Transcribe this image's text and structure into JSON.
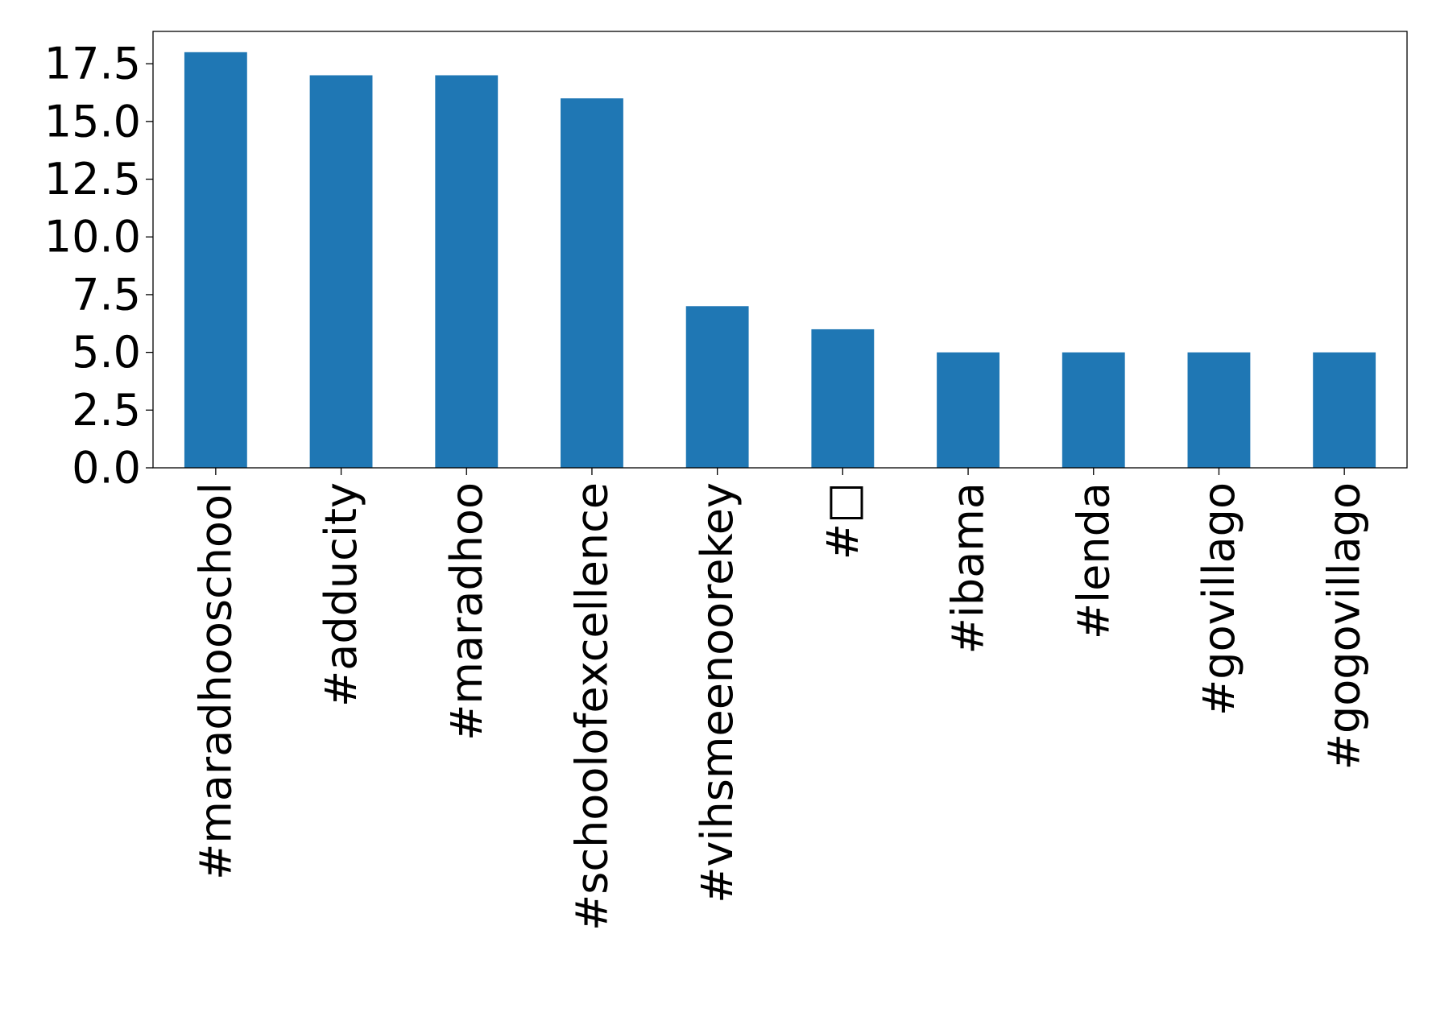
{
  "chart_data": {
    "type": "bar",
    "title": "",
    "xlabel": "",
    "ylabel": "",
    "categories": [
      "#maradhooschool",
      "#adducity",
      "#maradhoo",
      "#schoolofexcellence",
      "#vihsmeenoorekey",
      "#□",
      "#ibama",
      "#lenda",
      "#govillago",
      "#gogovillago"
    ],
    "values": [
      18,
      17,
      17,
      16,
      7,
      6,
      5,
      5,
      5,
      5
    ],
    "ylim": [
      0,
      18.9
    ],
    "yticks": [
      0.0,
      2.5,
      5.0,
      7.5,
      10.0,
      12.5,
      15.0,
      17.5
    ],
    "ytick_labels": [
      "0.0",
      "2.5",
      "5.0",
      "7.5",
      "10.0",
      "12.5",
      "15.0",
      "17.5"
    ],
    "bar_color": "#1f77b4",
    "grid": false,
    "legend": "none"
  }
}
